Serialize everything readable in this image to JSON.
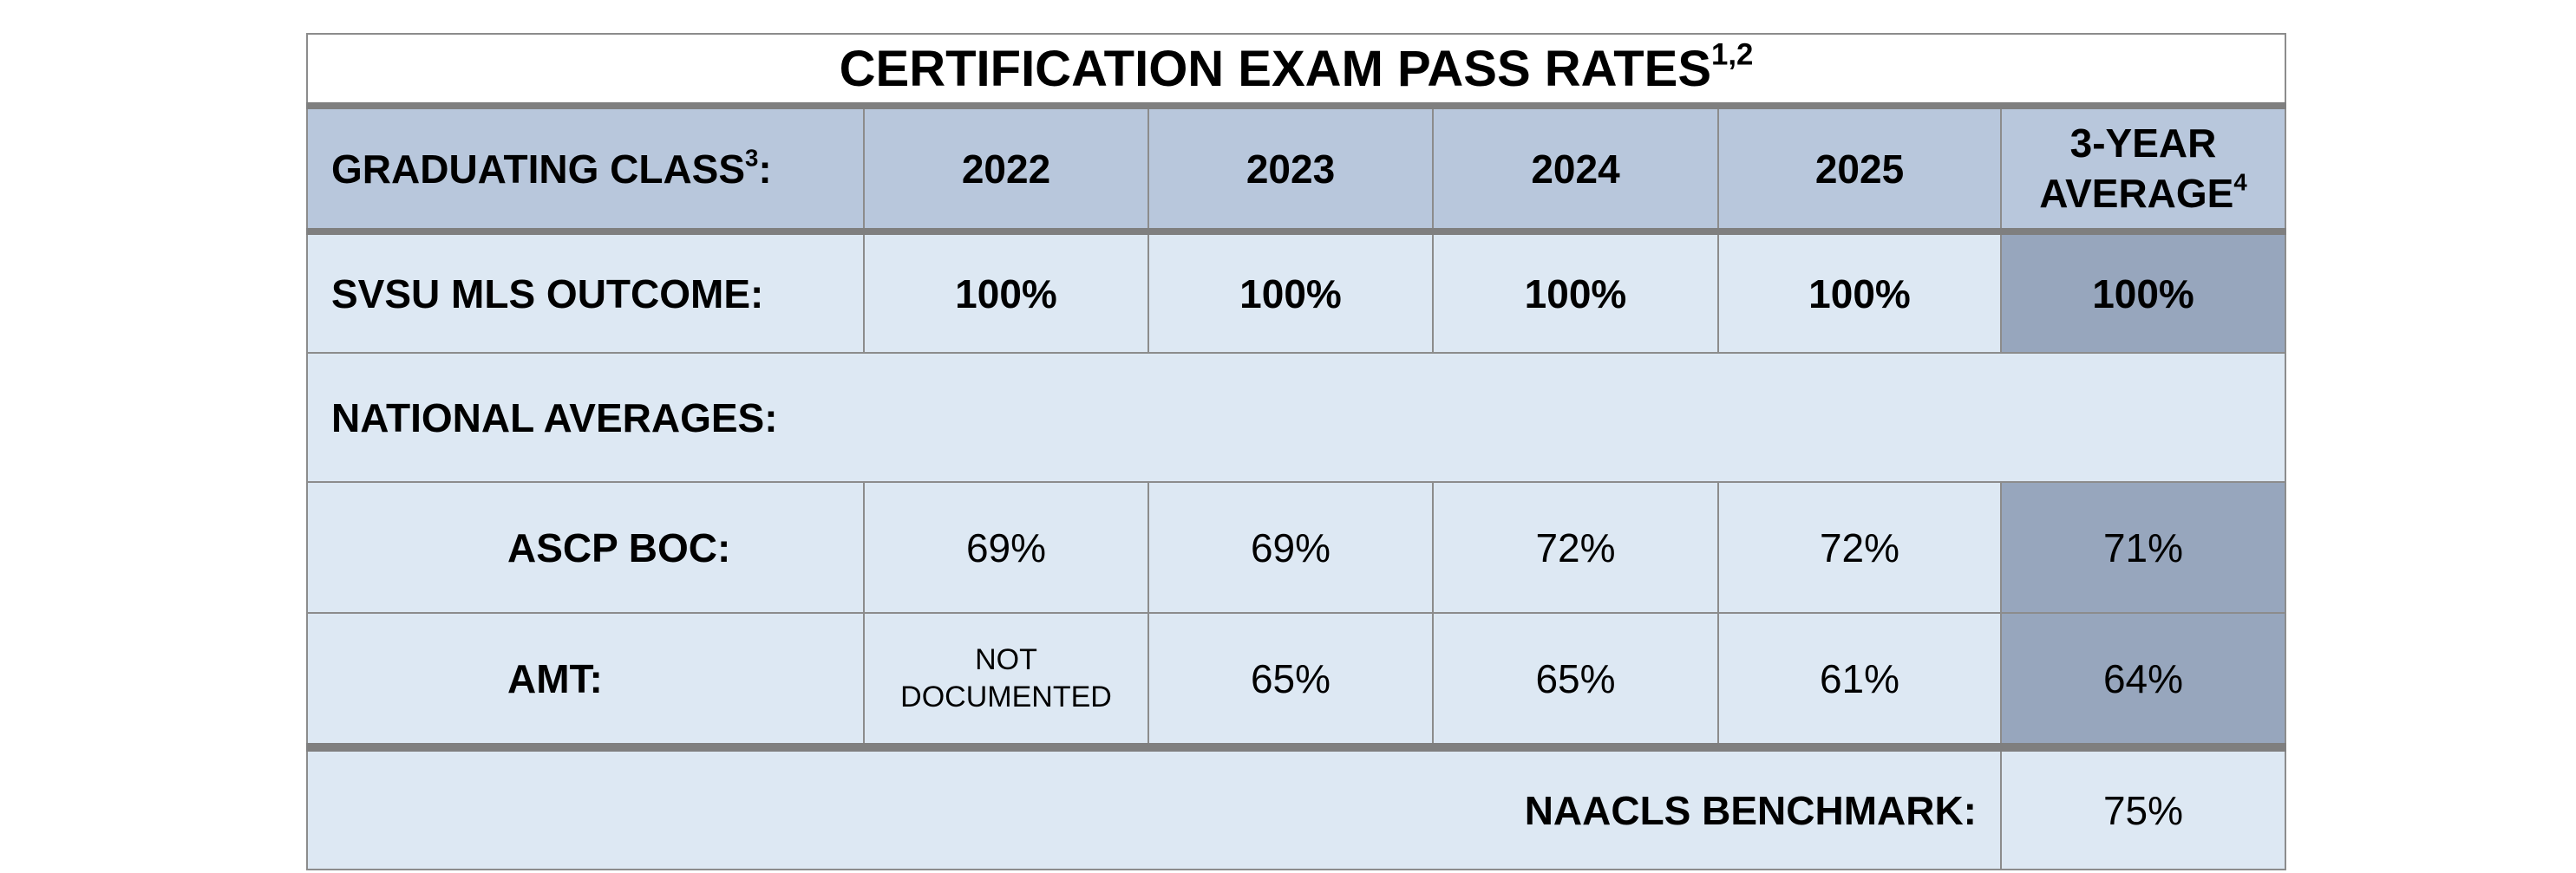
{
  "title": "CERTIFICATION EXAM PASS RATES",
  "title_sup": "1,2",
  "table": {
    "header": {
      "label": "GRADUATING CLASS",
      "label_sup": "3",
      "label_suffix": ":",
      "columns": [
        "2022",
        "2023",
        "2024",
        "2025"
      ],
      "average": "3-YEAR AVERAGE",
      "average_sup": "4"
    },
    "outcome": {
      "label": "SVSU MLS OUTCOME:",
      "values": [
        "100%",
        "100%",
        "100%",
        "100%"
      ],
      "average": "100%"
    },
    "section": "NATIONAL AVERAGES:",
    "national": [
      {
        "label": "ASCP BOC:",
        "values": [
          "69%",
          "69%",
          "72%",
          "72%"
        ],
        "average": "71%"
      },
      {
        "label": "AMT:",
        "values": [
          "NOT DOCUMENTED",
          "65%",
          "65%",
          "61%"
        ],
        "average": "64%"
      }
    ],
    "benchmark": {
      "label": "NAACLS BENCHMARK:",
      "value": "75%"
    }
  }
}
